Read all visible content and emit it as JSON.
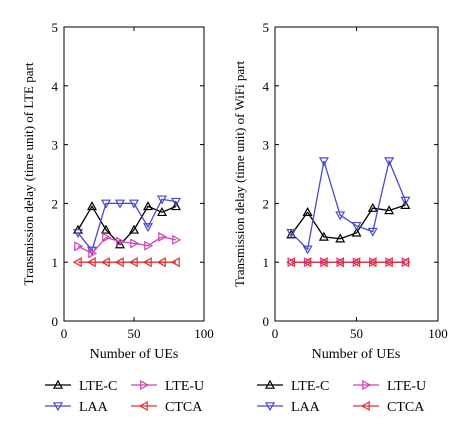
{
  "chart_data": [
    {
      "type": "line",
      "xlabel": "Number of UEs",
      "ylabel": "Transmission delay (time unit) of LTE part",
      "xlim": [
        0,
        100
      ],
      "ylim": [
        0,
        5
      ],
      "xticks": [
        "0",
        "50",
        "100"
      ],
      "yticks": [
        "0",
        "1",
        "2",
        "3",
        "4",
        "5"
      ],
      "grid": false,
      "x": [
        10,
        20,
        30,
        40,
        50,
        60,
        70,
        80
      ],
      "series": [
        {
          "name": "LTE-C",
          "color": "#000000",
          "marker": "triangle-up",
          "values": [
            1.55,
            1.95,
            1.55,
            1.3,
            1.55,
            1.95,
            1.85,
            1.95
          ]
        },
        {
          "name": "LAA",
          "color": "#4a4ac8",
          "marker": "triangle-down",
          "values": [
            1.5,
            1.2,
            2.0,
            2.0,
            2.0,
            1.6,
            2.07,
            2.03
          ]
        },
        {
          "name": "LTE-U",
          "color": "#d040b0",
          "marker": "triangle-right",
          "values": [
            1.27,
            1.15,
            1.42,
            1.35,
            1.32,
            1.28,
            1.43,
            1.38
          ]
        },
        {
          "name": "CTCA",
          "color": "#e03030",
          "marker": "triangle-left",
          "values": [
            1.0,
            1.0,
            1.0,
            1.0,
            1.0,
            1.0,
            1.0,
            1.0
          ]
        }
      ]
    },
    {
      "type": "line",
      "xlabel": "Number of UEs",
      "ylabel": "Transmission delay (time unit) of WiFi part",
      "xlim": [
        0,
        100
      ],
      "ylim": [
        0,
        5
      ],
      "xticks": [
        "0",
        "50",
        "100"
      ],
      "yticks": [
        "0",
        "1",
        "2",
        "3",
        "4",
        "5"
      ],
      "grid": false,
      "x": [
        10,
        20,
        30,
        40,
        50,
        60,
        70,
        80
      ],
      "series": [
        {
          "name": "LTE-C",
          "color": "#000000",
          "marker": "triangle-up",
          "values": [
            1.47,
            1.85,
            1.43,
            1.4,
            1.5,
            1.92,
            1.88,
            1.97
          ]
        },
        {
          "name": "LAA",
          "color": "#4a4ac8",
          "marker": "triangle-down",
          "values": [
            1.5,
            1.22,
            2.72,
            1.8,
            1.62,
            1.52,
            2.72,
            2.05
          ]
        },
        {
          "name": "LTE-U",
          "color": "#d040b0",
          "marker": "triangle-right",
          "values": [
            1.0,
            1.0,
            1.0,
            1.0,
            1.0,
            1.0,
            1.0,
            1.0
          ]
        },
        {
          "name": "CTCA",
          "color": "#e03030",
          "marker": "triangle-left",
          "values": [
            1.0,
            1.0,
            1.0,
            1.0,
            1.0,
            1.0,
            1.0,
            1.0
          ]
        }
      ]
    }
  ]
}
